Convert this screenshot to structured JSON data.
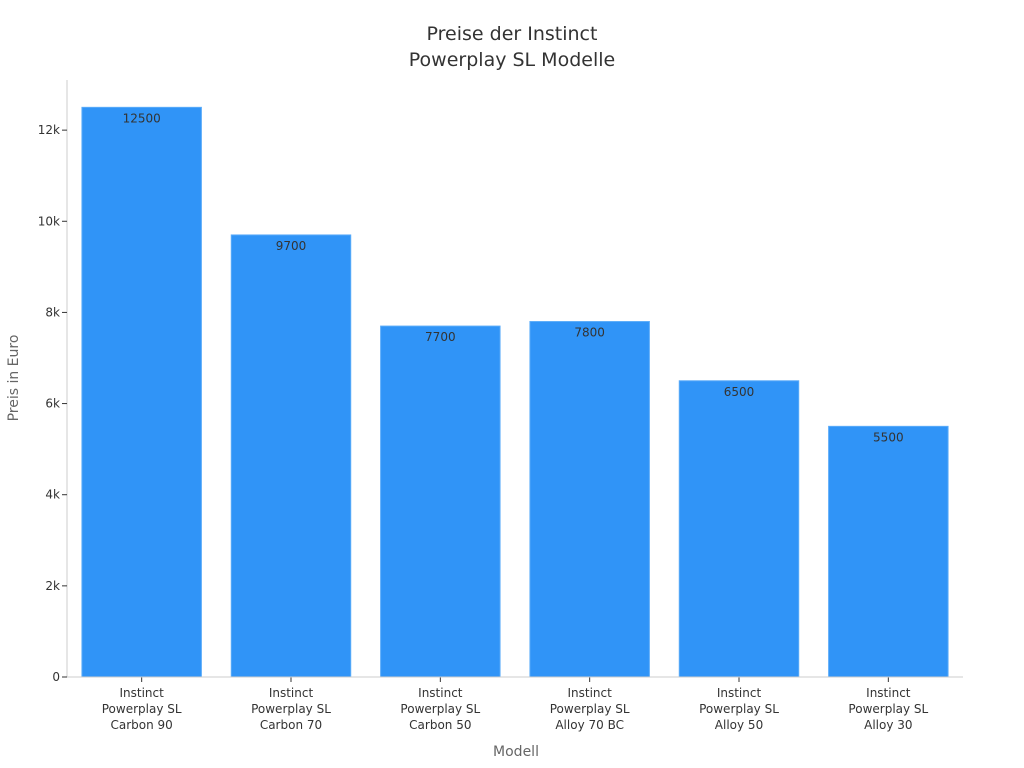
{
  "chart_data": {
    "type": "bar",
    "title": [
      "Preise der Instinct",
      "Powerplay SL Modelle"
    ],
    "xlabel": "Modell",
    "ylabel": "Preis in Euro",
    "categories": [
      [
        "Instinct",
        "Powerplay SL",
        "Carbon 90"
      ],
      [
        "Instinct",
        "Powerplay SL",
        "Carbon 70"
      ],
      [
        "Instinct",
        "Powerplay SL",
        "Carbon 50"
      ],
      [
        "Instinct",
        "Powerplay SL",
        "Alloy 70 BC"
      ],
      [
        "Instinct",
        "Powerplay SL",
        "Alloy 50"
      ],
      [
        "Instinct",
        "Powerplay SL",
        "Alloy 30"
      ]
    ],
    "values": [
      12500,
      9700,
      7700,
      7800,
      6500,
      5500
    ],
    "data_labels": [
      "12500",
      "9700",
      "7700",
      "7800",
      "6500",
      "5500"
    ],
    "ylim": [
      0,
      13100
    ],
    "yticks": [
      0,
      2000,
      4000,
      6000,
      8000,
      10000,
      12000
    ],
    "ytick_labels": [
      "0",
      "2k",
      "4k",
      "6k",
      "8k",
      "10k",
      "12k"
    ],
    "grid": false,
    "legend": "none",
    "colors": {
      "bar": "#3094f7",
      "bar_edge": "#5aabf9",
      "axis": "#cccccc"
    }
  }
}
